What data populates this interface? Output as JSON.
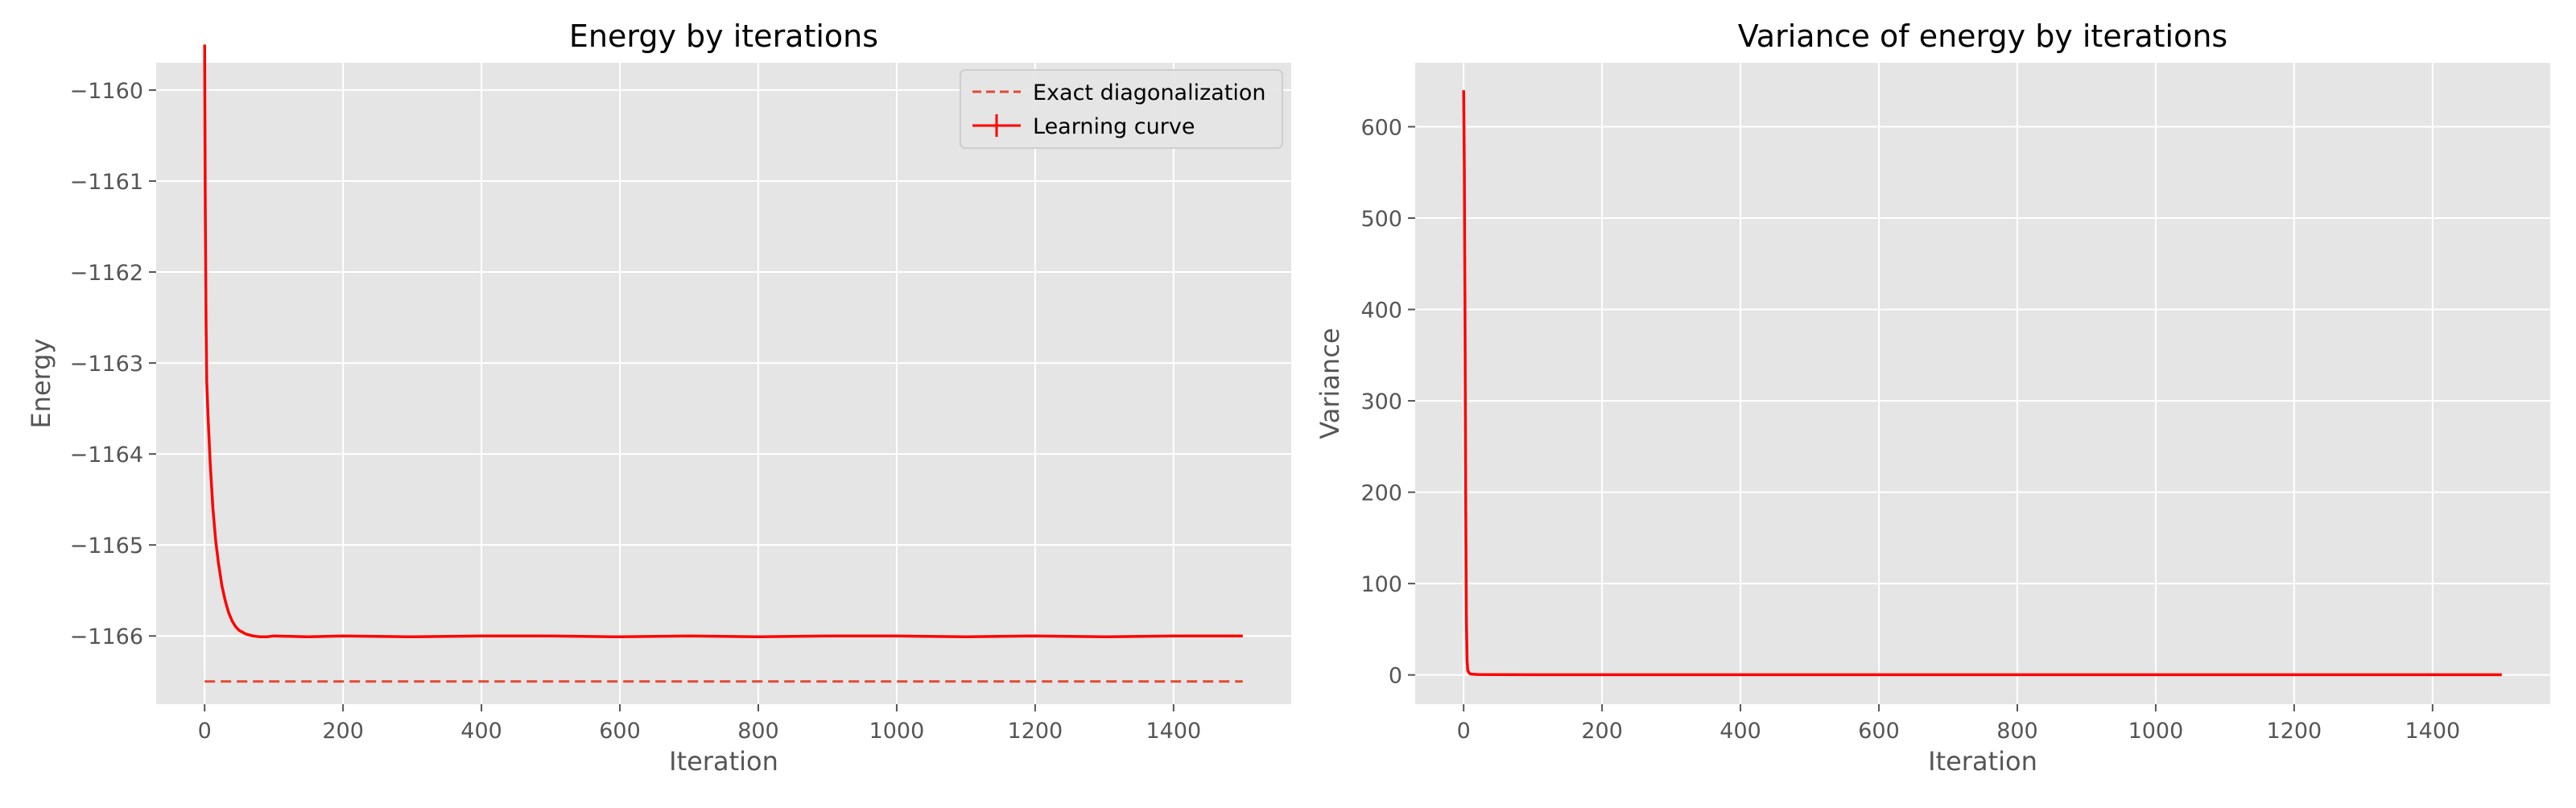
{
  "chart_data": [
    {
      "type": "line",
      "title": "Energy by iterations",
      "xlabel": "Iteration",
      "ylabel": "Energy",
      "xlim": [
        -70,
        1570
      ],
      "ylim": [
        -1166.75,
        -1159.7
      ],
      "xticks": [
        0,
        200,
        400,
        600,
        800,
        1000,
        1200,
        1400
      ],
      "xtick_labels": [
        "0",
        "200",
        "400",
        "600",
        "800",
        "1000",
        "1200",
        "1400"
      ],
      "yticks": [
        -1166,
        -1165,
        -1164,
        -1163,
        -1162,
        -1161,
        -1160
      ],
      "ytick_labels": [
        "−1166",
        "−1165",
        "−1164",
        "−1163",
        "−1162",
        "−1161",
        "−1160"
      ],
      "grid": true,
      "legend_position": "top-right",
      "series": [
        {
          "name": "Exact diagonalization",
          "style": "dashed",
          "color": "#e24a33",
          "x": [
            0,
            1500
          ],
          "y": [
            -1166.5,
            -1166.5
          ]
        },
        {
          "name": "Learning curve",
          "style": "solid-errorbar",
          "color": "#ff0000",
          "x": [
            0,
            1,
            2,
            3,
            5,
            8,
            12,
            16,
            20,
            25,
            30,
            35,
            40,
            45,
            50,
            55,
            60,
            70,
            80,
            90,
            100,
            150,
            200,
            300,
            400,
            500,
            600,
            700,
            800,
            900,
            1000,
            1100,
            1200,
            1300,
            1400,
            1500
          ],
          "y": [
            -1159.5,
            -1161.3,
            -1162.5,
            -1163.2,
            -1163.6,
            -1164.1,
            -1164.6,
            -1164.95,
            -1165.2,
            -1165.45,
            -1165.62,
            -1165.75,
            -1165.84,
            -1165.9,
            -1165.94,
            -1165.96,
            -1165.98,
            -1166.0,
            -1166.01,
            -1166.01,
            -1166.0,
            -1166.01,
            -1166.0,
            -1166.01,
            -1166.0,
            -1166.0,
            -1166.01,
            -1166.0,
            -1166.01,
            -1166.0,
            -1166.0,
            -1166.01,
            -1166.0,
            -1166.01,
            -1166.0,
            -1166.0
          ]
        }
      ]
    },
    {
      "type": "line",
      "title": "Variance of energy by iterations",
      "xlabel": "Iteration",
      "ylabel": "Variance",
      "xlim": [
        -70,
        1570
      ],
      "ylim": [
        -32,
        670
      ],
      "xticks": [
        0,
        200,
        400,
        600,
        800,
        1000,
        1200,
        1400
      ],
      "xtick_labels": [
        "0",
        "200",
        "400",
        "600",
        "800",
        "1000",
        "1200",
        "1400"
      ],
      "yticks": [
        0,
        100,
        200,
        300,
        400,
        500,
        600
      ],
      "ytick_labels": [
        "0",
        "100",
        "200",
        "300",
        "400",
        "500",
        "600"
      ],
      "grid": true,
      "series": [
        {
          "style": "solid",
          "color": "#ff0000",
          "x": [
            0,
            1,
            2,
            3,
            4,
            5,
            6,
            8,
            10,
            20,
            50,
            100,
            200,
            400,
            600,
            800,
            1000,
            1200,
            1400,
            1500
          ],
          "y": [
            640,
            560,
            380,
            180,
            60,
            15,
            5,
            2,
            1,
            0.5,
            0.3,
            0.2,
            0.2,
            0.2,
            0.2,
            0.2,
            0.2,
            0.2,
            0.2,
            0.2
          ]
        }
      ]
    }
  ]
}
